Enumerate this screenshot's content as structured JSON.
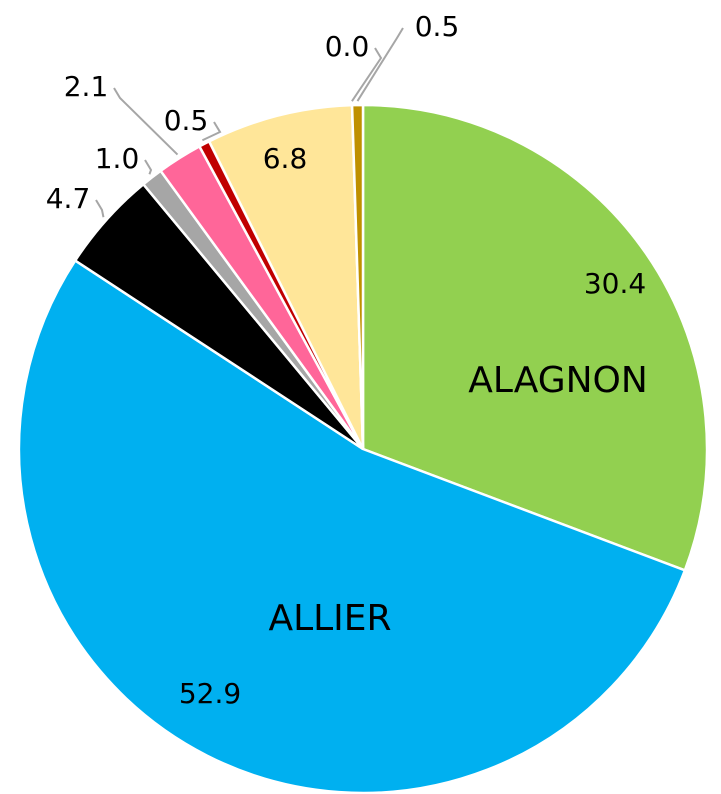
{
  "chart_data": {
    "type": "pie",
    "categories": [
      "ALAGNON",
      "ALLIER",
      null,
      null,
      null,
      null,
      null,
      null,
      null
    ],
    "values": [
      30.4,
      52.9,
      4.7,
      1.0,
      2.1,
      0.5,
      6.8,
      0.0,
      0.5
    ],
    "value_labels": [
      "30.4",
      "52.9",
      "4.7",
      "1.0",
      "2.1",
      "0.5",
      "6.8",
      "0.0",
      "0.5"
    ],
    "colors": [
      "#92d050",
      "#00b0f0",
      "#000000",
      "#a6a6a6",
      "#ff6699",
      "#c00000",
      "#ffe699",
      "#bf9000",
      "#bf9000"
    ]
  }
}
